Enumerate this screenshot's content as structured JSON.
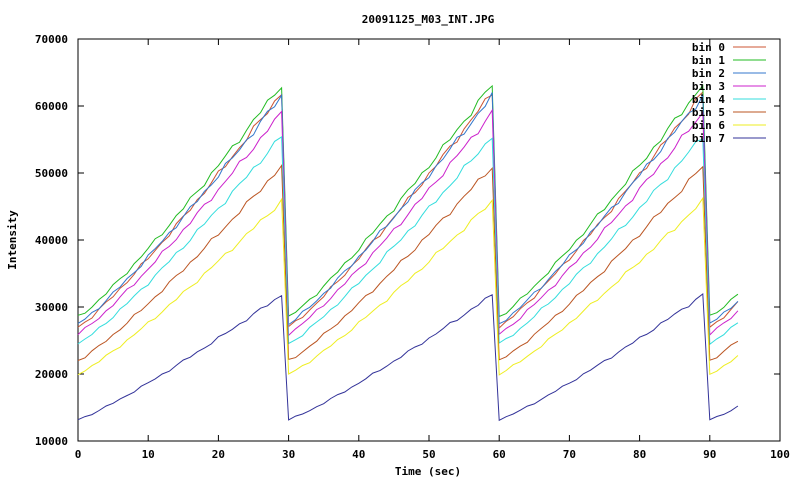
{
  "chart_data": {
    "type": "line",
    "title": "20091125_M03_INT.JPG",
    "xlabel": "Time (sec)",
    "ylabel": "Intensity",
    "xlim": [
      0,
      100
    ],
    "ylim": [
      10000,
      70000
    ],
    "xticks": [
      "0",
      "10",
      "20",
      "30",
      "40",
      "50",
      "60",
      "70",
      "80",
      "90",
      "100"
    ],
    "yticks": [
      "10000",
      "20000",
      "30000",
      "40000",
      "50000",
      "60000",
      "70000"
    ],
    "grid": false,
    "legend_position": "top-right",
    "series": [
      {
        "name": "bin 0",
        "color": "#cc5533",
        "start": 27000,
        "peak": 62000,
        "end": 35000
      },
      {
        "name": "bin 1",
        "color": "#22bb22",
        "start": 28500,
        "peak": 63200,
        "end": 36000
      },
      {
        "name": "bin 2",
        "color": "#3377cc",
        "start": 27500,
        "peak": 61500,
        "end": 35500
      },
      {
        "name": "bin 3",
        "color": "#cc22cc",
        "start": 26000,
        "peak": 59000,
        "end": 33500
      },
      {
        "name": "bin 4",
        "color": "#33dddd",
        "start": 24500,
        "peak": 55500,
        "end": 31000
      },
      {
        "name": "bin 5",
        "color": "#bb5522",
        "start": 22000,
        "peak": 51000,
        "end": 28000
      },
      {
        "name": "bin 6",
        "color": "#eeee22",
        "start": 20000,
        "peak": 45800,
        "end": 25000
      },
      {
        "name": "bin 7",
        "color": "#333399",
        "start": 13200,
        "peak": 31800,
        "end": 17000
      }
    ]
  }
}
